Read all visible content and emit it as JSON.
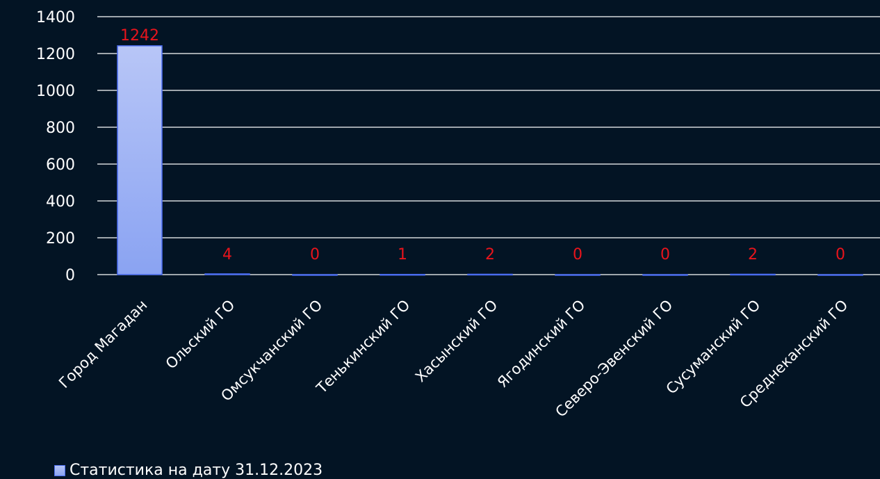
{
  "chart_data": {
    "type": "bar",
    "categories": [
      "Город Магадан",
      "Ольский ГО",
      "Омсукчанский ГО",
      "Тенькинский ГО",
      "Хасынский ГО",
      "Ягодинский ГО",
      "Северо-Эвенский ГО",
      "Сусуманский ГО",
      "Среднеканский ГО"
    ],
    "series": [
      {
        "name": "Статистика на дату 31.12.2023",
        "values": [
          1242,
          4,
          0,
          1,
          2,
          0,
          0,
          2,
          0
        ]
      }
    ],
    "ylim": [
      0,
      1400
    ],
    "yticks": [
      0,
      200,
      400,
      600,
      800,
      1000,
      1200,
      1400
    ],
    "grid": true,
    "legend_position": "bottom-left",
    "colors": {
      "background": "#031424",
      "grid": "#ffffff",
      "bar_top": "#b8c6f7",
      "bar_bottom": "#8aa3f2",
      "bar_stroke": "#4a6cf0",
      "data_label": "#e8141c",
      "text": "#ffffff"
    }
  }
}
